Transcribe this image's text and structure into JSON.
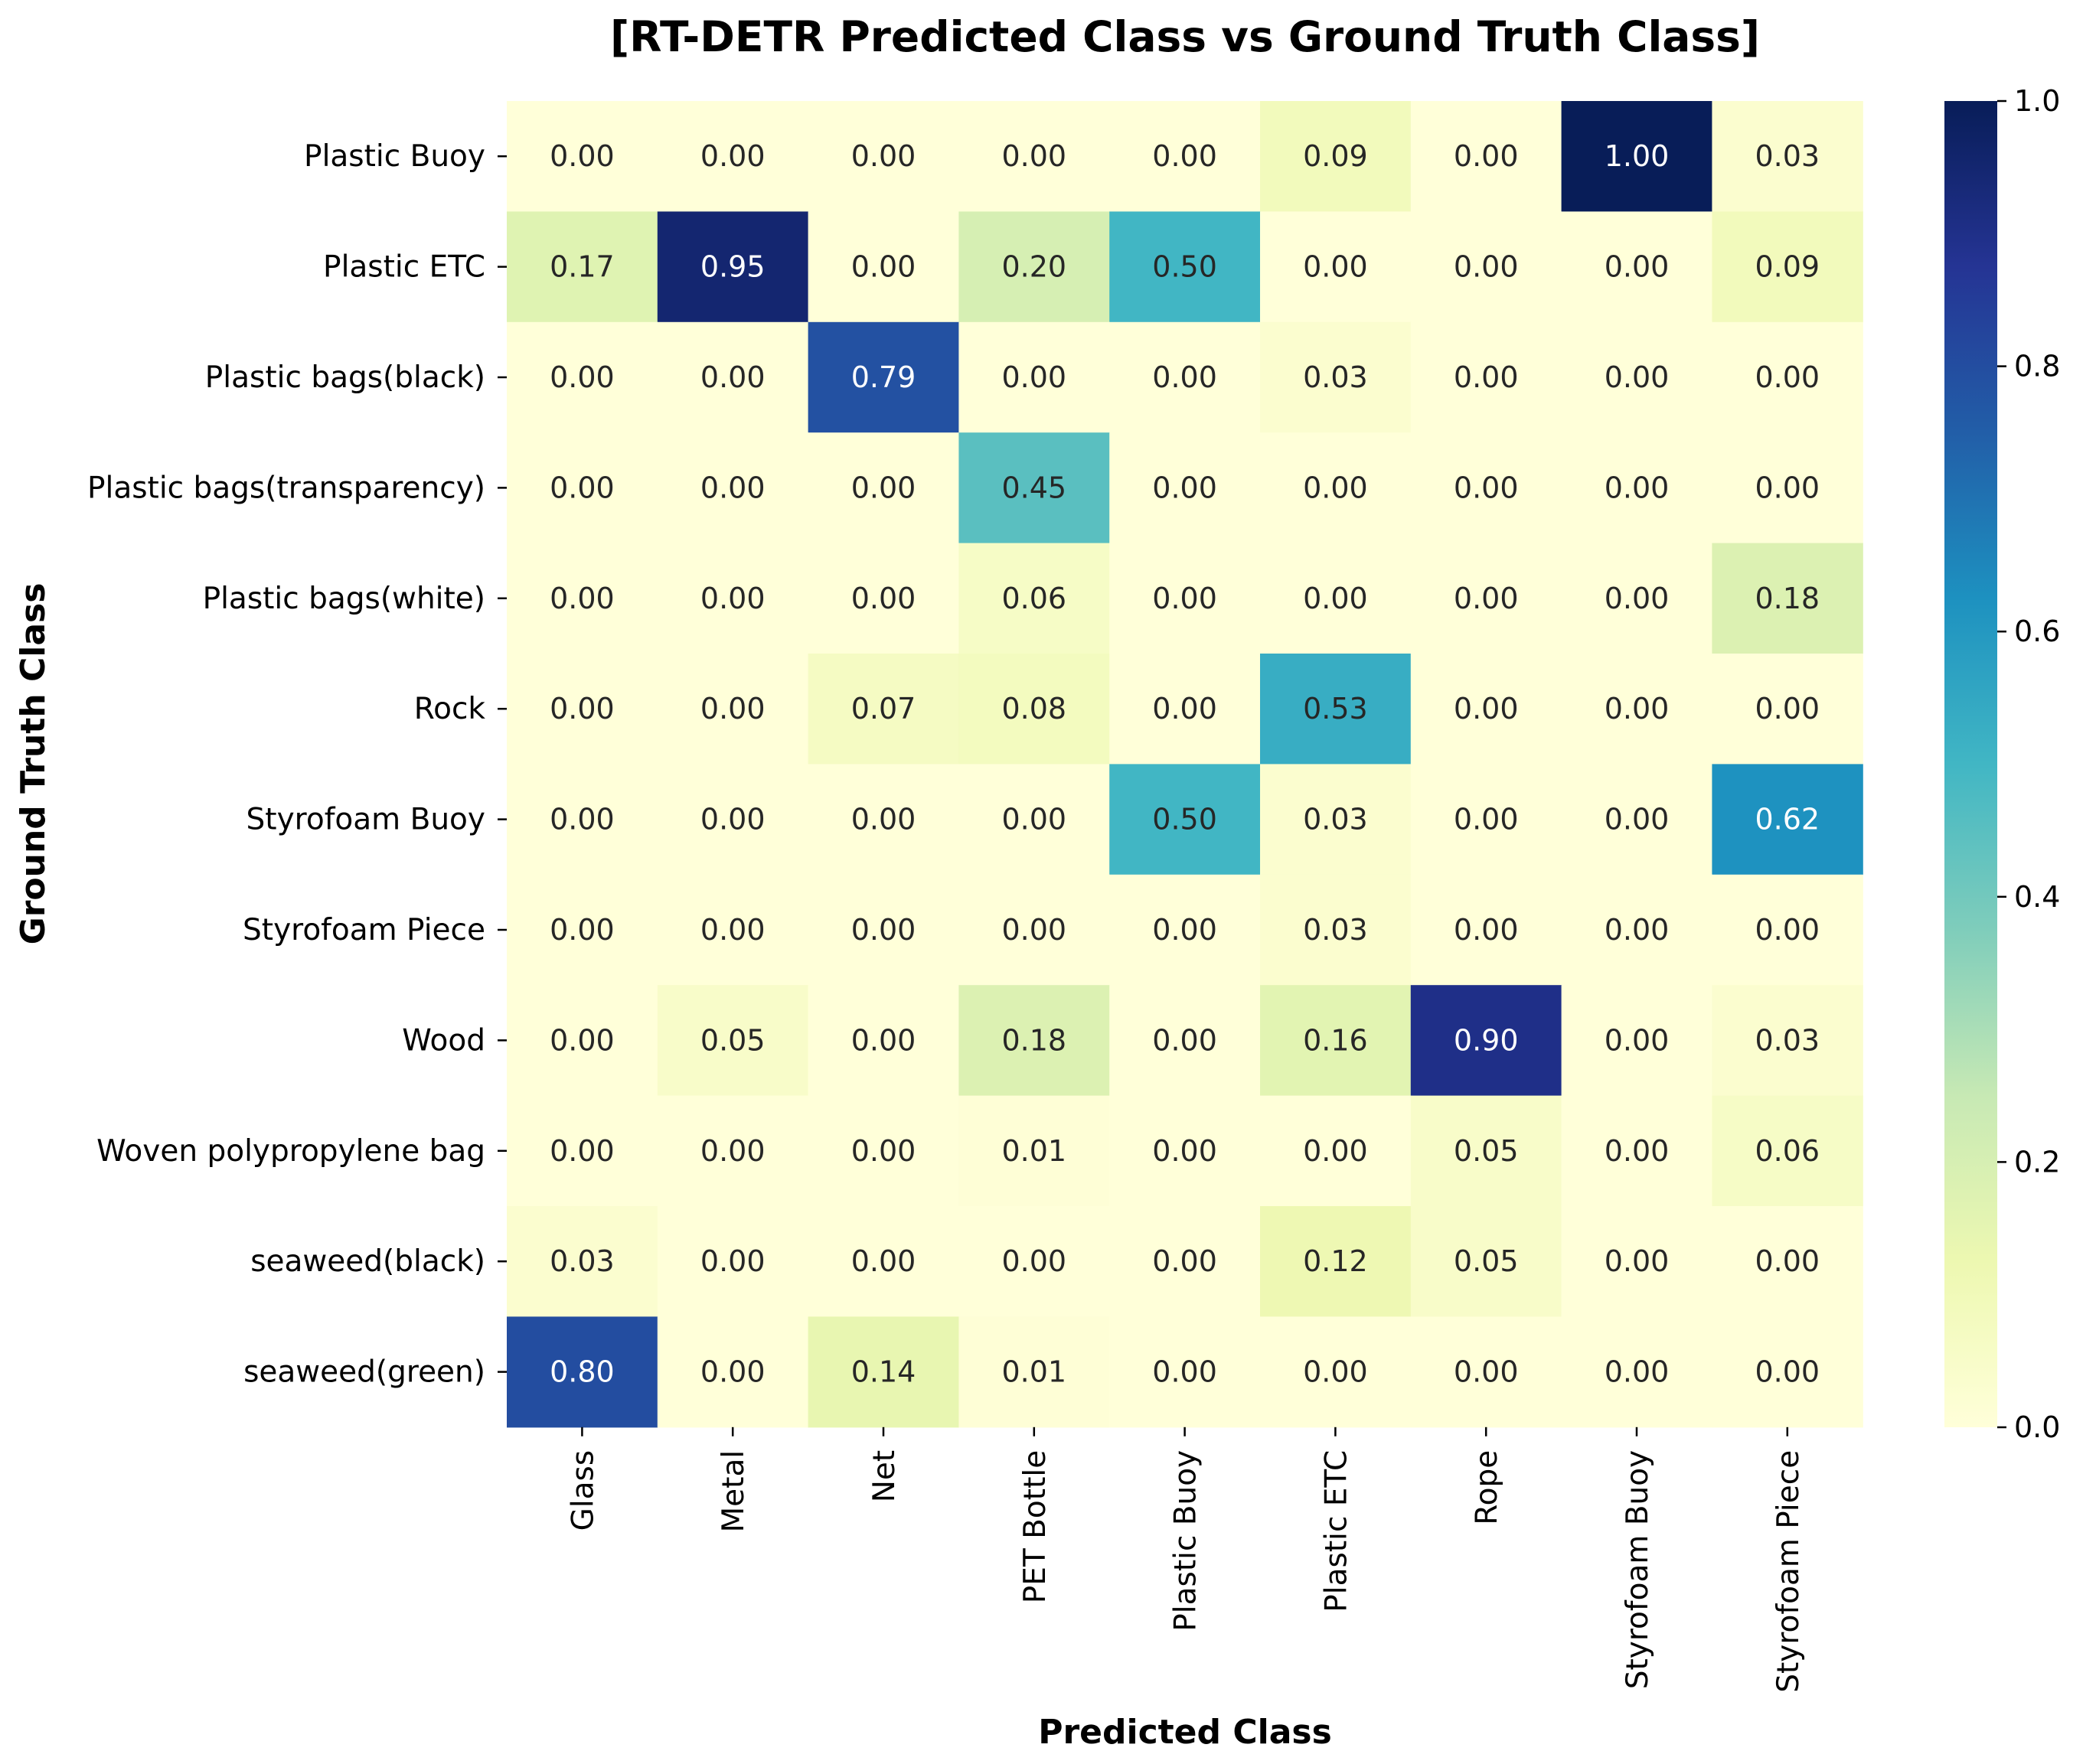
{
  "chart_data": {
    "type": "heatmap",
    "title": "[RT-DETR Predicted Class vs Ground Truth Class]",
    "xlabel": "Predicted Class",
    "ylabel": "Ground Truth Class",
    "colormap": "YlGnBu",
    "vmin": 0.0,
    "vmax": 1.0,
    "x_categories": [
      "Glass",
      "Metal",
      "Net",
      "PET Bottle",
      "Plastic Buoy",
      "Plastic ETC",
      "Rope",
      "Styrofoam Buoy",
      "Styrofoam Piece"
    ],
    "y_categories": [
      "Plastic Buoy",
      "Plastic ETC",
      "Plastic bags(black)",
      "Plastic bags(transparency)",
      "Plastic bags(white)",
      "Rock",
      "Styrofoam Buoy",
      "Styrofoam Piece",
      "Wood",
      "Woven polypropylene bag",
      "seaweed(black)",
      "seaweed(green)"
    ],
    "values": [
      [
        0.0,
        0.0,
        0.0,
        0.0,
        0.0,
        0.09,
        0.0,
        1.0,
        0.03
      ],
      [
        0.17,
        0.95,
        0.0,
        0.2,
        0.5,
        0.0,
        0.0,
        0.0,
        0.09
      ],
      [
        0.0,
        0.0,
        0.79,
        0.0,
        0.0,
        0.03,
        0.0,
        0.0,
        0.0
      ],
      [
        0.0,
        0.0,
        0.0,
        0.45,
        0.0,
        0.0,
        0.0,
        0.0,
        0.0
      ],
      [
        0.0,
        0.0,
        0.0,
        0.06,
        0.0,
        0.0,
        0.0,
        0.0,
        0.18
      ],
      [
        0.0,
        0.0,
        0.07,
        0.08,
        0.0,
        0.53,
        0.0,
        0.0,
        0.0
      ],
      [
        0.0,
        0.0,
        0.0,
        0.0,
        0.5,
        0.03,
        0.0,
        0.0,
        0.62
      ],
      [
        0.0,
        0.0,
        0.0,
        0.0,
        0.0,
        0.03,
        0.0,
        0.0,
        0.0
      ],
      [
        0.0,
        0.05,
        0.0,
        0.18,
        0.0,
        0.16,
        0.9,
        0.0,
        0.03
      ],
      [
        0.0,
        0.0,
        0.0,
        0.01,
        0.0,
        0.0,
        0.05,
        0.0,
        0.06
      ],
      [
        0.03,
        0.0,
        0.0,
        0.0,
        0.0,
        0.12,
        0.05,
        0.0,
        0.0
      ],
      [
        0.8,
        0.0,
        0.14,
        0.01,
        0.0,
        0.0,
        0.0,
        0.0,
        0.0
      ]
    ],
    "colorbar_ticks": [
      "0.0",
      "0.2",
      "0.4",
      "0.6",
      "0.8",
      "1.0"
    ]
  }
}
